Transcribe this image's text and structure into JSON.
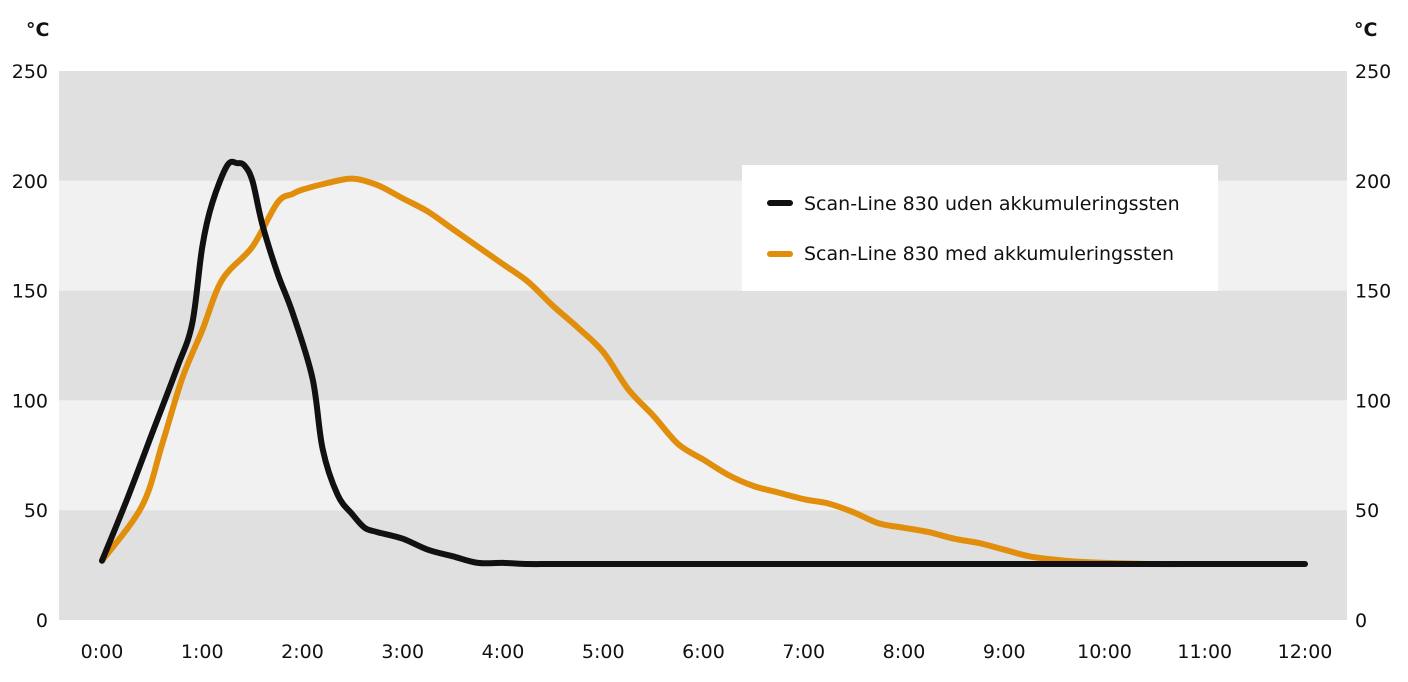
{
  "chart_data": {
    "type": "line",
    "y_unit_left": "°C",
    "y_unit_right": "°C",
    "ylim": [
      0,
      250
    ],
    "y_ticks": [
      "0",
      "50",
      "100",
      "150",
      "200",
      "250"
    ],
    "xlim": [
      0,
      12
    ],
    "x_ticks": [
      "0:00",
      "1:00",
      "2:00",
      "3:00",
      "4:00",
      "5:00",
      "6:00",
      "7:00",
      "8:00",
      "9:00",
      "10:00",
      "11:00",
      "12:00"
    ],
    "grid": "alternating horizontal bands",
    "legend_position": "top-right",
    "series": [
      {
        "name": "Scan-Line 830 uden akkumuleringssten",
        "color": "#111111",
        "x": [
          0.0,
          0.25,
          0.5,
          0.75,
          0.9,
          1.0,
          1.1,
          1.25,
          1.35,
          1.42,
          1.5,
          1.6,
          1.75,
          1.9,
          2.1,
          2.2,
          2.35,
          2.5,
          2.62,
          2.75,
          3.0,
          3.25,
          3.5,
          3.75,
          4.0,
          4.25,
          4.5,
          5.0,
          6.0,
          7.0,
          8.0,
          9.0,
          10.0,
          11.0,
          12.0
        ],
        "y": [
          27,
          55,
          85,
          115,
          135,
          170,
          190,
          207,
          208,
          207,
          200,
          180,
          158,
          140,
          110,
          78,
          57,
          48,
          42,
          40,
          37,
          32,
          29,
          26,
          26,
          25.5,
          25.5,
          25.5,
          25.5,
          25.5,
          25.5,
          25.5,
          25.5,
          25.5,
          25.5
        ]
      },
      {
        "name": "Scan-Line 830 med akkumuleringssten",
        "color": "#E08E0B",
        "x": [
          0.0,
          0.4,
          0.6,
          0.8,
          1.0,
          1.2,
          1.5,
          1.75,
          1.9,
          2.0,
          2.25,
          2.5,
          2.75,
          3.0,
          3.25,
          3.5,
          3.75,
          4.0,
          4.25,
          4.5,
          4.75,
          5.0,
          5.25,
          5.5,
          5.75,
          6.0,
          6.25,
          6.5,
          6.75,
          7.0,
          7.25,
          7.5,
          7.75,
          8.0,
          8.25,
          8.5,
          8.75,
          9.0,
          9.25,
          9.5,
          9.75,
          10.0,
          10.5,
          11.0,
          11.5,
          12.0
        ],
        "y": [
          27,
          52,
          80,
          110,
          132,
          155,
          170,
          190,
          194,
          196,
          199,
          201,
          198,
          192,
          186,
          178,
          170,
          162,
          154,
          143,
          133,
          122,
          105,
          93,
          80,
          73,
          66,
          61,
          58,
          55,
          53,
          49,
          44,
          42,
          40,
          37,
          35,
          32,
          29,
          27.5,
          26.5,
          26,
          25.5,
          25.5,
          25.5,
          25.5
        ]
      }
    ]
  }
}
